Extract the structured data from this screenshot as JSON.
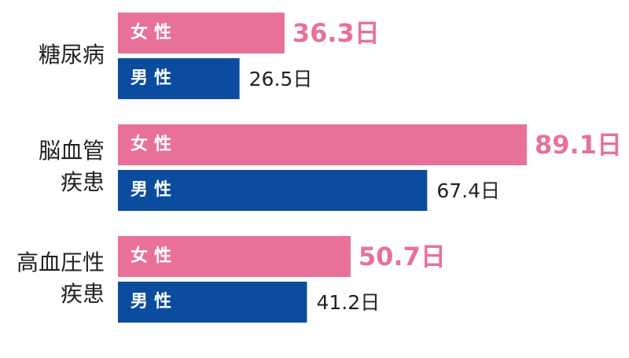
{
  "chart_data": {
    "type": "bar",
    "orientation": "horizontal",
    "categories": [
      [
        "糖尿病"
      ],
      [
        "脳血管",
        "疾患"
      ],
      [
        "高血圧性",
        "疾患"
      ]
    ],
    "series": [
      {
        "name": "女性",
        "color": "#e8719a",
        "values": [
          36.3,
          89.1,
          50.7
        ],
        "value_labels": [
          "36.3日",
          "89.1日",
          "50.7日"
        ]
      },
      {
        "name": "男性",
        "color": "#0b4c9f",
        "values": [
          26.5,
          67.4,
          41.2
        ],
        "value_labels": [
          "26.5日",
          "67.4日",
          "41.2日"
        ]
      }
    ]
  }
}
